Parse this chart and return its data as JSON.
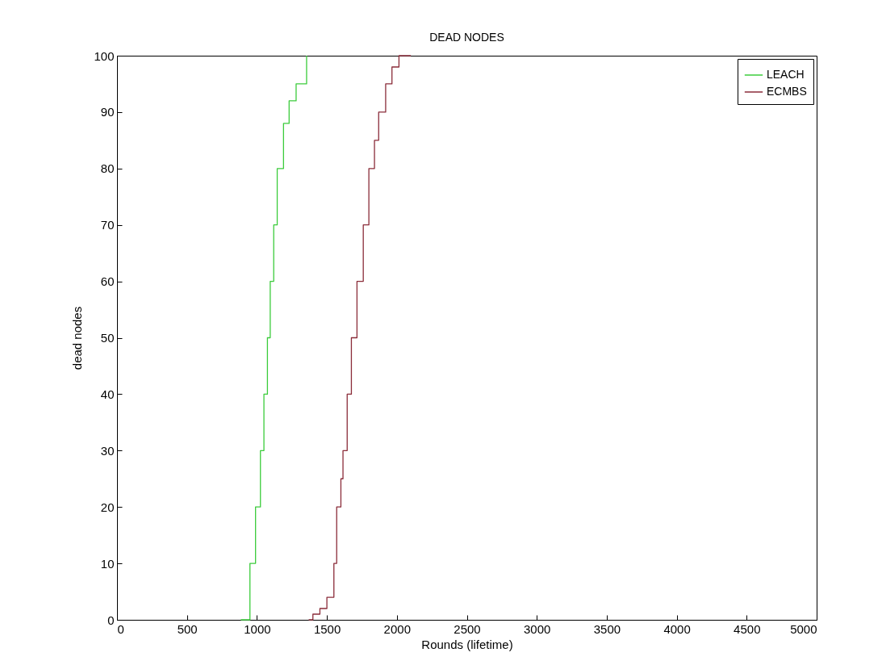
{
  "chart_data": {
    "type": "step",
    "title": "DEAD NODES",
    "xlabel": "Rounds (lifetime)",
    "ylabel": "dead nodes",
    "xlim": [
      0,
      5000
    ],
    "ylim": [
      0,
      100
    ],
    "xticks": [
      0,
      500,
      1000,
      1500,
      2000,
      2500,
      3000,
      3500,
      4000,
      4500,
      5000
    ],
    "yticks": [
      0,
      10,
      20,
      30,
      40,
      50,
      60,
      70,
      80,
      90,
      100
    ],
    "grid": false,
    "legend": "top right",
    "series": [
      {
        "name": "LEACH",
        "color": "#3ccc3c",
        "x": [
          885,
          950,
          990,
          1025,
          1050,
          1075,
          1095,
          1120,
          1145,
          1190,
          1230,
          1280,
          1355
        ],
        "values": [
          0,
          10,
          20,
          30,
          40,
          50,
          60,
          70,
          80,
          88,
          92,
          95,
          100
        ]
      },
      {
        "name": "ECMBS",
        "color": "#8b2d3a",
        "x": [
          1370,
          1400,
          1450,
          1500,
          1550,
          1570,
          1600,
          1615,
          1645,
          1675,
          1715,
          1760,
          1800,
          1840,
          1870,
          1920,
          1965,
          2015,
          2100
        ],
        "values": [
          0,
          1,
          2,
          4,
          10,
          20,
          25,
          30,
          40,
          50,
          60,
          70,
          80,
          85,
          90,
          95,
          98,
          100,
          100
        ]
      }
    ]
  }
}
